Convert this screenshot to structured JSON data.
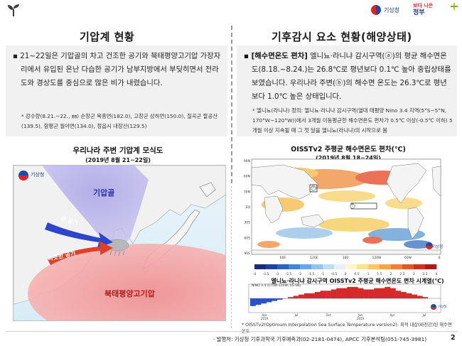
{
  "header": {
    "agency_name": "기상청",
    "gov_slogan_line1": "보다 나은",
    "gov_slogan_line2": "정부",
    "icon": "sprout-icon"
  },
  "left": {
    "title": "기압계 현황",
    "paragraph": "▪ 21~22일은 기압골의 차고 건조한 공기와 북태평양고기압 가장자리에서 유입된 온난 다습한 공기가 남부지방에서 부딪히면서 전라도와 경상도를 중심으로 많은 비가 내렸습니다.",
    "note": "* 강수량(8.21.~22., ㎜)  순창군 복흥면(182.0), 고창군 상하면(150.0), 칠곡군 팔공산(139.5), 함평군 월야면(134.0), 정읍시 내장산(129.5)",
    "map_title": "우리나라 주변 기압계 모식도",
    "map_subtitle": "(2019년 8월 21~22일)",
    "map_labels": {
      "trough": "기압골",
      "cold_air": "찬 공기",
      "warm_air": "따뜻한 공기",
      "high": "북태평양고기압"
    },
    "map_logo": "기상청"
  },
  "right": {
    "title": "기후감시 요소 현황(해양상태)",
    "para_bold": "▪ [해수면온도 편차]",
    "paragraph": " 엘니뇨·라니냐 감시구역(ⓐ)의 평균 해수면온도(8.18.~8.24.)는 26.8℃로 평년보다 0.1℃ 높아 중립상태를 보였습니다. 우리나라 주변(ⓑ)의 해수면 온도는 26.3℃로 평년보다 1.0℃ 높은 상태입니다.",
    "note": "* 엘니뇨(라니냐) 정의: 엘니뇨·라니냐 감시구역(열대 태평양 Nino 3.4 지역(5°S~5°N, 170°W~120°W))에서 3개월 이동평균한 해수면온도 편차가 0.5℃ 이상(-0.5℃ 이하) 5개월 이상 지속될 때 그 첫 달을 엘니뇨(라니냐)의 시작으로 봄",
    "sst_title": "OISSTv2 주평균 해수면온도 편차(℃)",
    "sst_subtitle": "(2019년 8월 18~24일)",
    "sst_logo": "기상청",
    "nino_title": "엘니뇨·라니냐 감시구역 OISSTv2 주평균 해수면온도 편차 시계열(℃)",
    "nino_logo": "기상청",
    "footnote": "* OISSTv2(Optimum Interpolation Sea Surface Temperature version2): 최적 내삽(바전간)된 해수면 온도"
  },
  "sst_map": {
    "lat_labels": [
      "90N",
      "60N",
      "30N",
      "EQ",
      "30S",
      "60S",
      "90S"
    ],
    "lon_labels": [
      "60E",
      "120E",
      "180",
      "120W",
      "60W",
      "0"
    ],
    "region_a": "ⓐ",
    "region_b": "ⓑ"
  },
  "chart_data": {
    "type": "bar",
    "title": "엘니뇨·라니냐 감시구역 OISSTv2 주평균 해수면온도 편차 시계열(℃)",
    "inner_label": "NINO 3.4 (170W-120W, 5S-5N)",
    "x_labels": [
      "Apr\n2019",
      "Jul",
      "Oct",
      "Jan\n2019",
      "Apr",
      "Jul"
    ],
    "colorbar_ticks": [
      "-4",
      "-3.5",
      "-3",
      "-2.5",
      "-2",
      "-1.5",
      "-1",
      "-0.5",
      "0",
      "0.5",
      "1",
      "1.5",
      "2",
      "2.5",
      "3",
      "3.5",
      "4"
    ],
    "series": [
      {
        "values": [
          -0.6,
          -0.5,
          -0.4,
          -0.3,
          -0.2,
          -0.1,
          0.0,
          0.1,
          0.2,
          0.3,
          0.4,
          0.4,
          0.5,
          0.6,
          0.6,
          0.7,
          0.8,
          0.8,
          0.9,
          0.9,
          0.8,
          0.7,
          0.7,
          0.8,
          0.8,
          0.9,
          0.8,
          0.6,
          0.5,
          0.4,
          0.3,
          0.2,
          0.1
        ]
      }
    ]
  },
  "footer": {
    "text": "· 발행처: 기상청 기후과학국 기후예측과(02-2181-0474), APCC 기후분석팀(051-745-3981)",
    "page": "2"
  }
}
